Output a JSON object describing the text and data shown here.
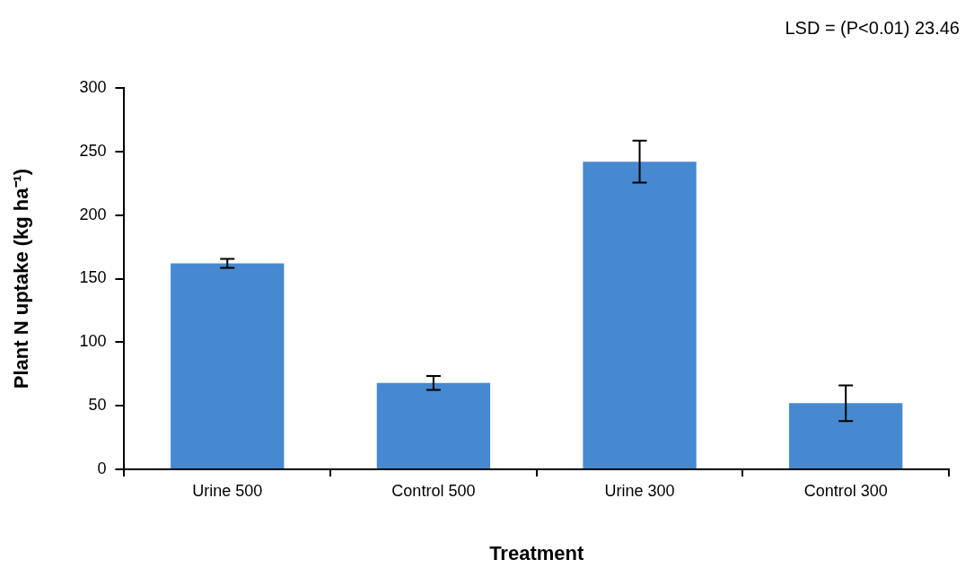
{
  "chart_data": {
    "type": "bar",
    "xlabel": "Treatment",
    "ylabel": "Plant N uptake (kg ha⁻¹)",
    "categories": [
      "Urine 500",
      "Control 500",
      "Urine 300",
      "Control 300"
    ],
    "values": [
      162,
      68,
      242,
      52
    ],
    "errors": [
      3.5,
      5.5,
      16.5,
      14
    ],
    "color": "#4689d0",
    "ylim": [
      0,
      300
    ],
    "yticks": [
      0,
      50,
      100,
      150,
      200,
      250,
      300
    ],
    "grid": false,
    "legend": false,
    "annotations": [
      "LSD = (P<0.01) 23.46"
    ]
  }
}
